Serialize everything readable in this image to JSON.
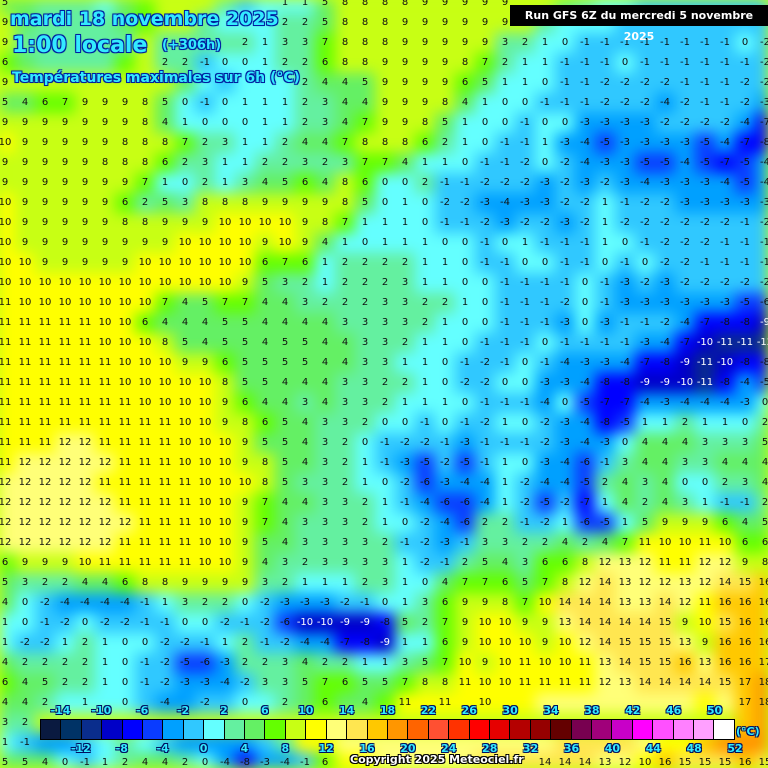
{
  "header": {
    "date": "mardi 18 novembre 2025",
    "time": "1:00 locale",
    "lead": "(+306h)",
    "parameter": "Températures maximales sur 6h (°C)",
    "run": "Run GFS 6Z du mercredi 5 novembre 2025"
  },
  "legend": {
    "unit": "(°C)",
    "colors": [
      "#0a1a40",
      "#003366",
      "#0a2d8c",
      "#0000c8",
      "#0000ff",
      "#0a3cff",
      "#00a0ff",
      "#30c8ff",
      "#64ffff",
      "#64f0a0",
      "#64f064",
      "#64ff00",
      "#c8ff14",
      "#ffff00",
      "#ffff78",
      "#ffe650",
      "#ffc800",
      "#ff9600",
      "#ff6400",
      "#ff5032",
      "#ff3200",
      "#ff0000",
      "#e60000",
      "#b40000",
      "#960000",
      "#640000",
      "#780050",
      "#a0007a",
      "#c800c8",
      "#ff00ff",
      "#ff50ff",
      "#ff80ff",
      "#ffa0ff",
      "#ffffff"
    ],
    "top_labels": [
      "-14",
      "-10",
      "-6",
      "-2",
      "2",
      "6",
      "10",
      "14",
      "18",
      "22",
      "26",
      "30",
      "34",
      "38",
      "42",
      "46",
      "50"
    ],
    "bottom_labels": [
      "-12",
      "-8",
      "-4",
      "0",
      "4",
      "8",
      "12",
      "16",
      "20",
      "24",
      "28",
      "32",
      "36",
      "40",
      "44",
      "48",
      "52"
    ]
  },
  "copyright": "Copyright 2025 Meteociel.fr",
  "grid_values": [
    [
      5,
      5,
      3,
      2,
      2,
      1,
      4,
      7,
      8,
      8,
      8,
      2,
      -1,
      1,
      1,
      1,
      5,
      8,
      8,
      8,
      8,
      9,
      9,
      9,
      9,
      9,
      8,
      8,
      4,
      3,
      1,
      0,
      -1,
      -1,
      -1,
      -1,
      -1,
      -2,
      -1
    ],
    [
      9,
      4,
      3,
      3,
      2,
      2,
      4,
      7,
      8,
      8,
      2,
      1,
      0,
      1,
      2,
      2,
      5,
      8,
      8,
      8,
      9,
      9,
      9,
      9,
      9,
      9,
      9,
      2,
      1,
      1,
      0,
      -1,
      -1,
      -1,
      -1,
      -1,
      -1,
      -2,
      -2
    ],
    [
      9,
      3,
      3,
      3,
      3,
      3,
      3,
      8,
      3,
      3,
      2,
      2,
      2,
      1,
      3,
      3,
      7,
      8,
      8,
      8,
      9,
      9,
      9,
      9,
      9,
      3,
      2,
      1,
      0,
      -1,
      -1,
      -1,
      -1,
      -1,
      -1,
      -1,
      -1,
      0,
      -2
    ],
    [
      6,
      4,
      3,
      3,
      3,
      2,
      7,
      9,
      2,
      2,
      -1,
      0,
      0,
      1,
      2,
      2,
      6,
      8,
      8,
      9,
      9,
      9,
      9,
      8,
      7,
      2,
      1,
      1,
      -1,
      -1,
      -1,
      0,
      -1,
      -1,
      -1,
      -1,
      -1,
      -1,
      -2
    ],
    [
      9,
      9,
      9,
      9,
      9,
      9,
      9,
      8,
      8,
      5,
      0,
      -1,
      0,
      1,
      1,
      2,
      4,
      4,
      5,
      9,
      9,
      9,
      9,
      6,
      5,
      1,
      1,
      0,
      -1,
      -1,
      -2,
      -2,
      -2,
      -2,
      -1,
      -1,
      -1,
      -2,
      -2
    ],
    [
      5,
      4,
      6,
      7,
      9,
      9,
      9,
      8,
      5,
      0,
      -1,
      0,
      1,
      1,
      1,
      2,
      3,
      4,
      4,
      9,
      9,
      9,
      8,
      4,
      1,
      0,
      0,
      -1,
      -1,
      -1,
      -2,
      -2,
      -2,
      -4,
      -2,
      -1,
      -1,
      -2,
      -3
    ],
    [
      9,
      9,
      9,
      9,
      9,
      9,
      9,
      8,
      4,
      1,
      0,
      0,
      0,
      1,
      1,
      2,
      3,
      4,
      7,
      9,
      9,
      8,
      5,
      1,
      0,
      0,
      -1,
      0,
      0,
      -3,
      -3,
      -3,
      -3,
      -2,
      -2,
      -2,
      -2,
      -4,
      -7
    ],
    [
      10,
      9,
      9,
      9,
      9,
      9,
      8,
      8,
      8,
      7,
      2,
      3,
      1,
      1,
      2,
      4,
      4,
      7,
      8,
      8,
      8,
      6,
      2,
      1,
      0,
      -1,
      -1,
      1,
      -3,
      -4,
      -5,
      -3,
      -3,
      -3,
      -3,
      -5,
      -4,
      -7,
      -8
    ],
    [
      9,
      9,
      9,
      9,
      9,
      8,
      8,
      8,
      6,
      2,
      3,
      1,
      1,
      2,
      2,
      3,
      2,
      3,
      7,
      7,
      4,
      1,
      1,
      0,
      -1,
      -1,
      -2,
      0,
      -2,
      -4,
      -3,
      -3,
      -5,
      -5,
      -4,
      -5,
      -7,
      -5,
      -4
    ],
    [
      9,
      9,
      9,
      9,
      9,
      9,
      9,
      7,
      1,
      0,
      2,
      1,
      3,
      4,
      5,
      6,
      4,
      8,
      6,
      0,
      0,
      2,
      -1,
      -1,
      -2,
      -2,
      -2,
      -3,
      -2,
      -3,
      -2,
      -3,
      -4,
      -3,
      -3,
      -3,
      -4,
      -5,
      -4
    ],
    [
      10,
      9,
      9,
      9,
      9,
      9,
      6,
      2,
      5,
      3,
      8,
      8,
      8,
      9,
      9,
      9,
      9,
      8,
      5,
      0,
      1,
      0,
      -2,
      -2,
      -3,
      -4,
      -3,
      -3,
      -2,
      -2,
      1,
      -1,
      -2,
      -2,
      -3,
      -3,
      -3,
      -3,
      -3
    ],
    [
      10,
      9,
      9,
      9,
      9,
      9,
      8,
      8,
      9,
      9,
      9,
      10,
      10,
      10,
      10,
      9,
      8,
      7,
      1,
      1,
      1,
      0,
      -1,
      -1,
      -2,
      -3,
      -2,
      -2,
      -3,
      -2,
      1,
      -2,
      -2,
      -2,
      -2,
      -2,
      -2,
      -1,
      -2
    ],
    [
      10,
      9,
      9,
      9,
      9,
      9,
      9,
      9,
      9,
      10,
      10,
      10,
      10,
      9,
      10,
      9,
      4,
      1,
      0,
      1,
      1,
      1,
      0,
      0,
      -1,
      0,
      1,
      -1,
      -1,
      -1,
      1,
      0,
      -1,
      -2,
      -2,
      -2,
      -1,
      -1,
      -1
    ],
    [
      10,
      10,
      9,
      9,
      9,
      9,
      9,
      10,
      10,
      10,
      10,
      10,
      10,
      6,
      7,
      6,
      1,
      2,
      2,
      2,
      2,
      1,
      1,
      0,
      -1,
      -1,
      0,
      0,
      -1,
      -1,
      0,
      -1,
      0,
      -2,
      -2,
      -1,
      -1,
      -1,
      -1
    ],
    [
      10,
      10,
      10,
      10,
      10,
      10,
      10,
      10,
      10,
      10,
      10,
      10,
      9,
      5,
      3,
      2,
      1,
      2,
      2,
      2,
      3,
      1,
      1,
      0,
      0,
      -1,
      -1,
      -1,
      -1,
      0,
      -1,
      -3,
      -2,
      -3,
      -2,
      -2,
      -2,
      -2,
      -2
    ],
    [
      11,
      10,
      10,
      10,
      10,
      10,
      10,
      10,
      7,
      4,
      5,
      7,
      7,
      4,
      4,
      3,
      2,
      2,
      2,
      3,
      3,
      2,
      2,
      1,
      0,
      -1,
      -1,
      -1,
      -2,
      0,
      -1,
      -3,
      -3,
      -3,
      -3,
      -3,
      -3,
      -5,
      -6
    ],
    [
      11,
      11,
      11,
      11,
      11,
      10,
      10,
      6,
      4,
      4,
      4,
      5,
      5,
      4,
      4,
      4,
      4,
      3,
      3,
      3,
      3,
      2,
      1,
      0,
      0,
      -1,
      -1,
      -1,
      -3,
      0,
      -3,
      -1,
      -1,
      -2,
      -4,
      -7,
      -8,
      -8,
      -9
    ],
    [
      11,
      11,
      11,
      11,
      11,
      10,
      10,
      10,
      8,
      5,
      4,
      5,
      5,
      4,
      5,
      5,
      4,
      4,
      3,
      3,
      2,
      1,
      1,
      0,
      -1,
      -1,
      -1,
      0,
      -1,
      -1,
      -1,
      -1,
      -3,
      -4,
      -7,
      -10,
      -11,
      -11,
      -12
    ],
    [
      11,
      11,
      11,
      11,
      11,
      11,
      10,
      10,
      10,
      9,
      9,
      6,
      5,
      5,
      5,
      5,
      4,
      4,
      3,
      3,
      1,
      1,
      0,
      -1,
      -2,
      -1,
      0,
      -1,
      -4,
      -3,
      -3,
      -4,
      -7,
      -8,
      -9,
      -11,
      -10,
      -8,
      -8
    ],
    [
      11,
      11,
      11,
      11,
      11,
      11,
      10,
      10,
      10,
      10,
      10,
      8,
      5,
      5,
      4,
      4,
      4,
      3,
      3,
      2,
      2,
      1,
      0,
      -2,
      -2,
      0,
      0,
      -3,
      -3,
      -4,
      -8,
      -8,
      -9,
      -9,
      -10,
      -11,
      -8,
      -4,
      -5
    ],
    [
      11,
      11,
      11,
      11,
      11,
      11,
      11,
      10,
      10,
      10,
      10,
      9,
      6,
      4,
      4,
      3,
      4,
      3,
      3,
      2,
      1,
      1,
      1,
      0,
      -1,
      -1,
      -1,
      -4,
      0,
      -5,
      -7,
      -7,
      -4,
      -3,
      -4,
      -4,
      -4,
      -3,
      0
    ],
    [
      11,
      11,
      11,
      11,
      11,
      11,
      11,
      11,
      11,
      10,
      10,
      9,
      8,
      6,
      5,
      4,
      3,
      3,
      2,
      0,
      0,
      -1,
      0,
      -1,
      -2,
      1,
      0,
      -2,
      -3,
      -4,
      -8,
      -5,
      1,
      1,
      2,
      1,
      1,
      0,
      2
    ],
    [
      11,
      11,
      11,
      12,
      12,
      11,
      11,
      11,
      11,
      10,
      10,
      10,
      9,
      5,
      5,
      4,
      3,
      2,
      0,
      -1,
      -2,
      -2,
      -1,
      -3,
      -1,
      -1,
      -1,
      -2,
      -3,
      -4,
      -3,
      0,
      4,
      4,
      4,
      3,
      3,
      3,
      5
    ],
    [
      11,
      12,
      12,
      12,
      12,
      12,
      11,
      11,
      11,
      10,
      10,
      10,
      9,
      8,
      5,
      4,
      3,
      2,
      1,
      -1,
      -3,
      -5,
      -2,
      -5,
      -1,
      1,
      0,
      -3,
      -4,
      -6,
      -1,
      3,
      4,
      4,
      3,
      3,
      4,
      4,
      4
    ],
    [
      12,
      12,
      12,
      12,
      12,
      11,
      11,
      11,
      11,
      11,
      10,
      10,
      10,
      8,
      5,
      3,
      3,
      2,
      1,
      0,
      -2,
      -6,
      -3,
      -4,
      -4,
      1,
      -2,
      -4,
      -4,
      -5,
      2,
      4,
      3,
      4,
      0,
      0,
      2,
      3,
      4
    ],
    [
      12,
      12,
      12,
      12,
      12,
      12,
      11,
      11,
      11,
      11,
      10,
      10,
      9,
      7,
      4,
      4,
      3,
      3,
      2,
      1,
      -1,
      -4,
      -6,
      -6,
      -4,
      1,
      -2,
      -5,
      -2,
      -7,
      1,
      4,
      2,
      4,
      3,
      1,
      -1,
      -1,
      2
    ],
    [
      12,
      12,
      12,
      12,
      12,
      12,
      12,
      11,
      11,
      11,
      10,
      10,
      9,
      7,
      4,
      3,
      3,
      3,
      2,
      1,
      0,
      -2,
      -4,
      -6,
      2,
      2,
      -1,
      -2,
      1,
      -6,
      -5,
      1,
      5,
      9,
      9,
      9,
      6,
      4,
      5
    ],
    [
      12,
      12,
      12,
      12,
      12,
      12,
      11,
      11,
      11,
      11,
      10,
      10,
      9,
      5,
      4,
      3,
      3,
      3,
      3,
      2,
      -1,
      -2,
      -3,
      -1,
      3,
      3,
      2,
      2,
      4,
      2,
      4,
      7,
      11,
      10,
      10,
      11,
      10,
      6,
      6
    ],
    [
      6,
      9,
      9,
      9,
      10,
      11,
      11,
      11,
      11,
      11,
      10,
      10,
      9,
      4,
      3,
      2,
      3,
      3,
      3,
      3,
      1,
      -2,
      -1,
      2,
      5,
      4,
      3,
      6,
      6,
      8,
      12,
      13,
      12,
      11,
      11,
      12,
      12,
      9,
      8
    ],
    [
      5,
      3,
      2,
      2,
      4,
      4,
      6,
      8,
      8,
      9,
      9,
      9,
      9,
      3,
      2,
      1,
      1,
      1,
      2,
      3,
      1,
      0,
      4,
      7,
      7,
      6,
      5,
      7,
      8,
      12,
      14,
      13,
      12,
      12,
      13,
      12,
      14,
      15,
      16
    ],
    [
      4,
      0,
      -2,
      -4,
      -4,
      -4,
      -4,
      -1,
      1,
      3,
      2,
      2,
      0,
      -2,
      -3,
      -3,
      -3,
      -2,
      -1,
      0,
      1,
      3,
      6,
      9,
      9,
      8,
      7,
      10,
      14,
      14,
      14,
      13,
      13,
      14,
      12,
      11,
      16,
      16,
      16
    ],
    [
      1,
      0,
      -1,
      -2,
      0,
      -2,
      -2,
      -1,
      -1,
      0,
      0,
      -2,
      -1,
      -2,
      -6,
      -10,
      -10,
      -9,
      -9,
      -8,
      5,
      2,
      7,
      9,
      10,
      10,
      9,
      9,
      13,
      14,
      14,
      14,
      14,
      15,
      9,
      10,
      15,
      16,
      16
    ],
    [
      1,
      -2,
      -2,
      1,
      2,
      1,
      0,
      0,
      -2,
      -2,
      -1,
      1,
      2,
      -1,
      -2,
      -4,
      -4,
      -7,
      -8,
      -9,
      1,
      1,
      6,
      9,
      10,
      10,
      10,
      9,
      10,
      12,
      14,
      15,
      15,
      15,
      13,
      9,
      16,
      16,
      16
    ],
    [
      4,
      2,
      2,
      2,
      2,
      1,
      0,
      -1,
      -2,
      -5,
      -6,
      -3,
      2,
      2,
      3,
      4,
      2,
      2,
      1,
      1,
      3,
      5,
      7,
      10,
      9,
      10,
      11,
      10,
      10,
      11,
      13,
      14,
      15,
      15,
      16,
      13,
      16,
      16,
      17
    ],
    [
      6,
      4,
      5,
      2,
      2,
      1,
      0,
      -1,
      -2,
      -3,
      -3,
      -4,
      -2,
      3,
      3,
      5,
      7,
      6,
      5,
      5,
      7,
      8,
      8,
      11,
      10,
      10,
      11,
      11,
      11,
      11,
      12,
      13,
      14,
      14,
      14,
      14,
      15,
      17,
      18
    ],
    [
      4,
      4,
      2,
      1,
      1,
      1,
      0,
      -1,
      -4,
      -3,
      -2,
      -2,
      0,
      0,
      2,
      4,
      6,
      5,
      4,
      7,
      11,
      11,
      11,
      11,
      10,
      11,
      11,
      12,
      12,
      12,
      12,
      12,
      13,
      13,
      13,
      11,
      12,
      17,
      18
    ],
    [
      3,
      2,
      null,
      null,
      null,
      null,
      null,
      null,
      null,
      null,
      null,
      null,
      null,
      null,
      null,
      null,
      null,
      null,
      null,
      null,
      null,
      null,
      null,
      null,
      null,
      null,
      null,
      null,
      null,
      null,
      null,
      null,
      null,
      null,
      null,
      null,
      null,
      17,
      18
    ],
    [
      1,
      -1,
      -4,
      -3,
      -2,
      1,
      2,
      1,
      -1,
      -4,
      -4,
      -4,
      -3,
      -1,
      3,
      10,
      11,
      12,
      12,
      13,
      12,
      12,
      12,
      13,
      13,
      13,
      12,
      13,
      14,
      14,
      14,
      14,
      12,
      11,
      10,
      16,
      18,
      18,
      18
    ],
    [
      5,
      5,
      4,
      0,
      -1,
      1,
      2,
      4,
      4,
      2,
      0,
      -4,
      -8,
      -3,
      -4,
      -1,
      6,
      10,
      11,
      12,
      12,
      12,
      13,
      13,
      14,
      14,
      14,
      14,
      14,
      14,
      13,
      12,
      10,
      16,
      15,
      15,
      15,
      16,
      15
    ]
  ]
}
